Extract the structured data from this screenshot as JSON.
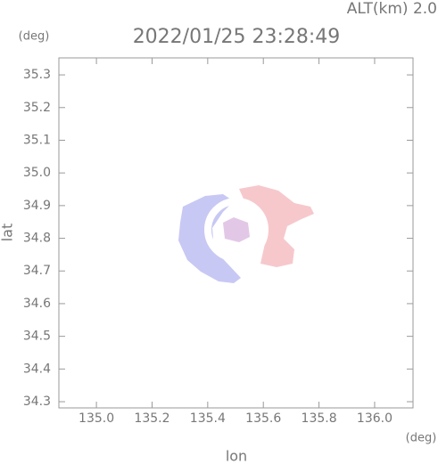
{
  "chart_data": {
    "type": "image",
    "title": "2022/01/25 23:28:49",
    "subtitle": "ALT(km) 2.0",
    "x_label": "lon",
    "y_label": "lat",
    "x_unit": "(deg)",
    "y_unit": "(deg)",
    "xlim": [
      134.865,
      136.138
    ],
    "ylim": [
      34.281,
      35.352
    ],
    "xticks": [
      {
        "value": 135,
        "label": "135.0"
      },
      135.2,
      135.4,
      135.6,
      135.8,
      {
        "value": 136,
        "label": "136.0"
      }
    ],
    "yticks": [
      34.3,
      34.4,
      34.5,
      34.6,
      34.7,
      34.8,
      34.9,
      {
        "value": 35,
        "label": "35.0"
      },
      35.1,
      35.2,
      35.3
    ]
  }
}
